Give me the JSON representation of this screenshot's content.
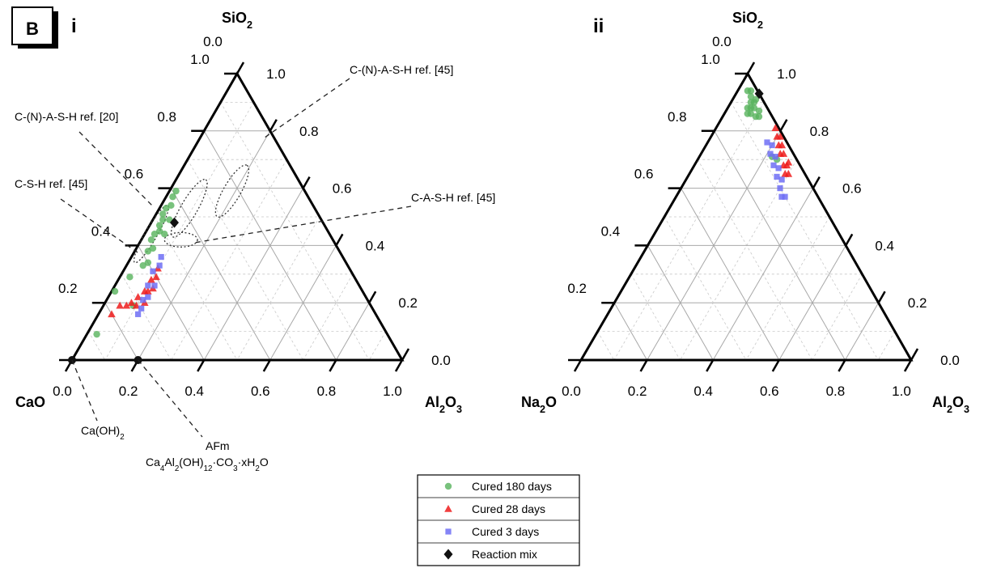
{
  "panel": {
    "letter": "B"
  },
  "chart_data": [
    {
      "type": "scatter",
      "subtype": "ternary",
      "panel_label": "i",
      "apex_labels": {
        "top": "SiO2",
        "left": "CaO",
        "right": "Al2O3"
      },
      "axis_ticks": [
        0.0,
        0.2,
        0.4,
        0.6,
        0.8,
        1.0
      ],
      "tick_labels": {
        "bottom": [
          "0.0",
          "0.2",
          "0.4",
          "0.6",
          "0.8",
          "1.0"
        ],
        "left": [
          "1.0",
          "0.8",
          "0.6",
          "0.4",
          "0.2",
          "0.0"
        ],
        "right": [
          "0.0",
          "0.2",
          "0.4",
          "0.6",
          "0.8",
          "1.0"
        ]
      },
      "grid": true,
      "reference_regions": [
        {
          "label": "C-(N)-A-S-H ref. [45]",
          "center": {
            "c": 0.22,
            "a": 0.19
          },
          "rx": 0.09,
          "ry": 0.026,
          "angle": -60
        },
        {
          "label": "C-(N)-A-S-H ref. [20]",
          "center": {
            "c": 0.38,
            "a": 0.09
          },
          "rx": 0.1,
          "ry": 0.025,
          "angle": -60
        },
        {
          "label": "C-S-H ref. [45]",
          "center": {
            "c": 0.54,
            "a": 0.02
          },
          "rx": 0.1,
          "ry": 0.018,
          "angle": -60
        },
        {
          "label": "C-A-S-H ref. [45]",
          "center": {
            "c": 0.46,
            "a": 0.12
          },
          "rx": 0.05,
          "ry": 0.022,
          "angle": 0
        }
      ],
      "reference_points": [
        {
          "label": "Ca(OH)2",
          "c": 1.0,
          "a": 0.0
        },
        {
          "label_lines": [
            "AFm",
            "Ca4Al2(OH)12·CO3·xH2O"
          ],
          "c": 0.8,
          "a": 0.2
        }
      ],
      "series": [
        {
          "name": "Cured 180 days",
          "marker": "circle",
          "color": "#57b35d",
          "points": [
            {
              "c": 0.39,
              "a": 0.02
            },
            {
              "c": 0.41,
              "a": 0.02
            },
            {
              "c": 0.43,
              "a": 0.03
            },
            {
              "c": 0.45,
              "a": 0.02
            },
            {
              "c": 0.47,
              "a": 0.02
            },
            {
              "c": 0.48,
              "a": 0.03
            },
            {
              "c": 0.5,
              "a": 0.03
            },
            {
              "c": 0.51,
              "a": 0.04
            },
            {
              "c": 0.53,
              "a": 0.03
            },
            {
              "c": 0.55,
              "a": 0.03
            },
            {
              "c": 0.56,
              "a": 0.05
            },
            {
              "c": 0.58,
              "a": 0.04
            },
            {
              "c": 0.6,
              "a": 0.06
            },
            {
              "c": 0.62,
              "a": 0.05
            },
            {
              "c": 0.68,
              "a": 0.03
            },
            {
              "c": 0.72,
              "a": 0.09
            },
            {
              "c": 0.75,
              "a": 0.01
            },
            {
              "c": 0.88,
              "a": 0.03
            },
            {
              "c": 0.5,
              "a": 0.06
            },
            {
              "c": 0.46,
              "a": 0.05
            }
          ]
        },
        {
          "name": "Cured 28 days",
          "marker": "triangle",
          "color": "#ee1c1c",
          "points": [
            {
              "c": 0.58,
              "a": 0.1
            },
            {
              "c": 0.6,
              "a": 0.11
            },
            {
              "c": 0.62,
              "a": 0.1
            },
            {
              "c": 0.63,
              "a": 0.12
            },
            {
              "c": 0.65,
              "a": 0.11
            },
            {
              "c": 0.66,
              "a": 0.1
            },
            {
              "c": 0.68,
              "a": 0.12
            },
            {
              "c": 0.69,
              "a": 0.09
            },
            {
              "c": 0.71,
              "a": 0.1
            },
            {
              "c": 0.72,
              "a": 0.08
            },
            {
              "c": 0.74,
              "a": 0.07
            },
            {
              "c": 0.76,
              "a": 0.05
            },
            {
              "c": 0.8,
              "a": 0.04
            }
          ]
        },
        {
          "name": "Cured 3 days",
          "marker": "square",
          "color": "#6f6ff5",
          "points": [
            {
              "c": 0.55,
              "a": 0.09
            },
            {
              "c": 0.57,
              "a": 0.1
            },
            {
              "c": 0.6,
              "a": 0.09
            },
            {
              "c": 0.62,
              "a": 0.12
            },
            {
              "c": 0.64,
              "a": 0.1
            },
            {
              "c": 0.66,
              "a": 0.12
            },
            {
              "c": 0.68,
              "a": 0.11
            },
            {
              "c": 0.7,
              "a": 0.12
            },
            {
              "c": 0.72,
              "a": 0.12
            }
          ]
        },
        {
          "name": "Reaction mix",
          "marker": "diamond",
          "color": "#111111",
          "points": [
            {
              "c": 0.45,
              "a": 0.07
            }
          ]
        }
      ]
    },
    {
      "type": "scatter",
      "subtype": "ternary",
      "panel_label": "ii",
      "apex_labels": {
        "top": "SiO2",
        "left": "Na2O",
        "right": "Al2O3"
      },
      "axis_ticks": [
        0.0,
        0.2,
        0.4,
        0.6,
        0.8,
        1.0
      ],
      "tick_labels": {
        "bottom": [
          "0.0",
          "0.2",
          "0.4",
          "0.6",
          "0.8",
          "1.0"
        ],
        "left": [
          "1.0",
          "0.8",
          "0.6",
          "0.4",
          "0.2",
          "0.0"
        ],
        "right": [
          "0.0",
          "0.2",
          "0.4",
          "0.6",
          "0.8",
          "1.0"
        ]
      },
      "grid": true,
      "series": [
        {
          "name": "Cured 180 days",
          "marker": "circle",
          "color": "#57b35d",
          "points": [
            {
              "c": 0.02,
              "a": 0.04
            },
            {
              "c": 0.03,
              "a": 0.05
            },
            {
              "c": 0.04,
              "a": 0.06
            },
            {
              "c": 0.03,
              "a": 0.07
            },
            {
              "c": 0.05,
              "a": 0.07
            },
            {
              "c": 0.04,
              "a": 0.08
            },
            {
              "c": 0.06,
              "a": 0.08
            },
            {
              "c": 0.05,
              "a": 0.1
            },
            {
              "c": 0.04,
              "a": 0.11
            },
            {
              "c": 0.03,
              "a": 0.1
            },
            {
              "c": 0.06,
              "a": 0.06
            },
            {
              "c": 0.07,
              "a": 0.07
            },
            {
              "c": 0.02,
              "a": 0.07
            },
            {
              "c": 0.03,
              "a": 0.03
            },
            {
              "c": 0.07,
              "a": 0.22
            },
            {
              "c": 0.06,
              "a": 0.24
            }
          ]
        },
        {
          "name": "Cured 28 days",
          "marker": "triangle",
          "color": "#ee1c1c",
          "points": [
            {
              "c": 0.01,
              "a": 0.18
            },
            {
              "c": 0.02,
              "a": 0.2
            },
            {
              "c": 0.01,
              "a": 0.21
            },
            {
              "c": 0.03,
              "a": 0.22
            },
            {
              "c": 0.02,
              "a": 0.23
            },
            {
              "c": 0.04,
              "a": 0.24
            },
            {
              "c": 0.03,
              "a": 0.25
            },
            {
              "c": 0.05,
              "a": 0.27
            },
            {
              "c": 0.04,
              "a": 0.28
            },
            {
              "c": 0.06,
              "a": 0.29
            },
            {
              "c": 0.05,
              "a": 0.3
            },
            {
              "c": 0.03,
              "a": 0.28
            }
          ]
        },
        {
          "name": "Cured 3 days",
          "marker": "square",
          "color": "#6f6ff5",
          "points": [
            {
              "c": 0.06,
              "a": 0.18
            },
            {
              "c": 0.05,
              "a": 0.2
            },
            {
              "c": 0.07,
              "a": 0.21
            },
            {
              "c": 0.06,
              "a": 0.23
            },
            {
              "c": 0.08,
              "a": 0.24
            },
            {
              "c": 0.07,
              "a": 0.26
            },
            {
              "c": 0.09,
              "a": 0.27
            },
            {
              "c": 0.08,
              "a": 0.29
            },
            {
              "c": 0.1,
              "a": 0.3
            },
            {
              "c": 0.11,
              "a": 0.32
            },
            {
              "c": 0.1,
              "a": 0.33
            }
          ]
        },
        {
          "name": "Reaction mix",
          "marker": "diamond",
          "color": "#111111",
          "points": [
            {
              "c": 0.0,
              "a": 0.07
            }
          ]
        }
      ]
    }
  ],
  "legend": {
    "items": [
      {
        "label": "Cured 180 days",
        "marker": "circle",
        "color": "#57b35d"
      },
      {
        "label": "Cured 28 days",
        "marker": "triangle",
        "color": "#ee1c1c"
      },
      {
        "label": "Cured 3 days",
        "marker": "square",
        "color": "#6f6ff5"
      },
      {
        "label": "Reaction mix",
        "marker": "diamond",
        "color": "#111111"
      }
    ]
  }
}
